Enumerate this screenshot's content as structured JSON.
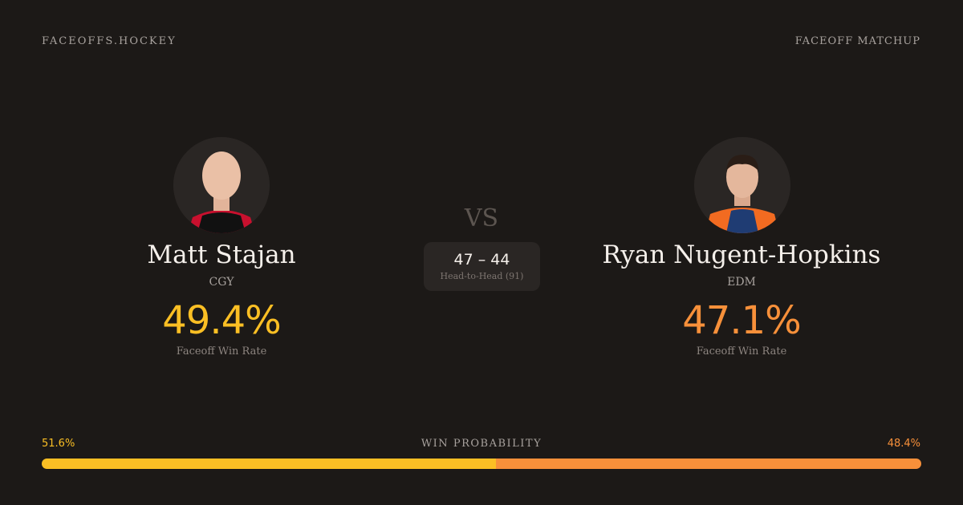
{
  "brand": "FACEOFFS.HOCKEY",
  "header_right": "FACEOFF MATCHUP",
  "vs": "VS",
  "players": [
    {
      "name": "Matt Stajan",
      "team": "CGY",
      "rate": "49.4%",
      "rate_label": "Faceoff Win Rate",
      "color": "#fbbf24"
    },
    {
      "name": "Ryan Nugent-Hopkins",
      "team": "EDM",
      "rate": "47.1%",
      "rate_label": "Faceoff Win Rate",
      "color": "#f7903a"
    }
  ],
  "head_to_head": {
    "score": "47 – 44",
    "label": "Head-to-Head (91)"
  },
  "win_probability": {
    "label": "WIN PROBABILITY",
    "values": [
      51.6,
      48.4
    ],
    "value_labels": [
      "51.6%",
      "48.4%"
    ]
  }
}
